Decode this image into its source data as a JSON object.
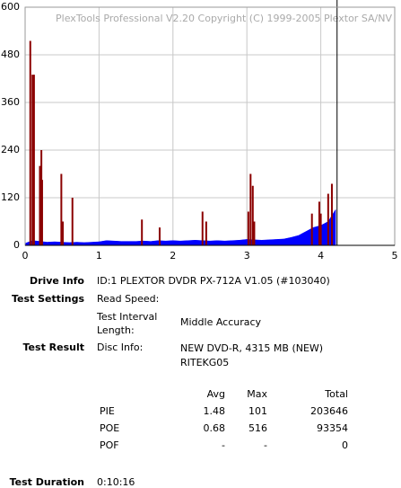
{
  "chart_data": {
    "type": "area",
    "title": "PlexTools Professional V2.20 Copyright (C) 1999-2005 Plextor SA/NV",
    "x": [
      0,
      0.1,
      0.2,
      0.3,
      0.4,
      0.5,
      0.6,
      0.7,
      0.8,
      0.9,
      1.0,
      1.1,
      1.2,
      1.3,
      1.4,
      1.5,
      1.6,
      1.7,
      1.8,
      1.9,
      2.0,
      2.1,
      2.2,
      2.3,
      2.4,
      2.5,
      2.6,
      2.7,
      2.8,
      2.9,
      3.0,
      3.1,
      3.2,
      3.3,
      3.4,
      3.5,
      3.6,
      3.7,
      3.8,
      3.9,
      4.0,
      4.1,
      4.2
    ],
    "values": [
      5,
      12,
      10,
      8,
      9,
      8,
      7,
      8,
      7,
      8,
      9,
      12,
      11,
      10,
      10,
      10,
      11,
      10,
      12,
      11,
      12,
      11,
      12,
      13,
      12,
      11,
      12,
      11,
      12,
      13,
      15,
      14,
      13,
      14,
      15,
      16,
      20,
      25,
      35,
      45,
      50,
      60,
      90
    ],
    "color": "#0000ff",
    "spikes": {
      "x": [
        0.07,
        0.1,
        0.12,
        0.2,
        0.22,
        0.23,
        0.49,
        0.51,
        0.64,
        1.58,
        1.82,
        2.4,
        2.45,
        3.02,
        3.05,
        3.08,
        3.1,
        3.88,
        3.98,
        4.0,
        4.1,
        4.15
      ],
      "values": [
        515,
        430,
        430,
        200,
        240,
        165,
        180,
        60,
        120,
        65,
        45,
        85,
        60,
        85,
        180,
        150,
        60,
        80,
        110,
        80,
        130,
        155
      ],
      "color": "#8b0000"
    },
    "end_marker": {
      "x": 4.22,
      "color": "#000000"
    },
    "xlim": [
      0,
      5
    ],
    "ylim": [
      0,
      600
    ],
    "xticks": [
      0,
      1,
      2,
      3,
      4,
      5
    ],
    "yticks": [
      0,
      120,
      240,
      360,
      480,
      600
    ],
    "grid": true
  },
  "info": {
    "drive_info": {
      "label": "Drive Info",
      "value": "ID:1 PLEXTOR DVDR PX-712A V1.05 (#103040)"
    },
    "test_settings": {
      "label": "Test Settings",
      "read_speed_label": "Read Speed:",
      "interval_label": "Test Interval Length:",
      "interval_value": "Middle Accuracy"
    },
    "test_result": {
      "label": "Test Result",
      "disc_info_label": "Disc Info:",
      "disc_info_value": "NEW DVD-R, 4315 MB (NEW) RITEKG05"
    },
    "stats": {
      "columns": [
        "Avg",
        "Max",
        "Total"
      ],
      "rows": [
        [
          "PIE",
          1.48,
          101,
          203646
        ],
        [
          "POE",
          0.68,
          516,
          93354
        ],
        [
          "POF",
          "-",
          "-",
          0
        ]
      ]
    },
    "test_duration": {
      "label": "Test Duration",
      "value": "0:10:16"
    }
  }
}
